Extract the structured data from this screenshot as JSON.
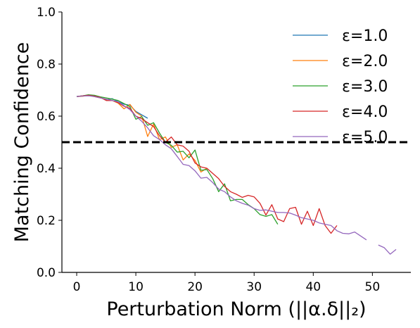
{
  "chart_data": {
    "type": "line",
    "title": "",
    "xlabel": "Perturbation Norm (||α.δ||₂)",
    "ylabel": "Matching Confidence",
    "xlim": [
      -2.5,
      56.5
    ],
    "ylim": [
      0.0,
      1.0
    ],
    "xticks": [
      0,
      10,
      20,
      30,
      40,
      50
    ],
    "yticks": [
      0.0,
      0.2,
      0.4,
      0.6,
      0.8,
      1.0
    ],
    "xtick_labels": [
      "0",
      "10",
      "20",
      "30",
      "40",
      "50"
    ],
    "ytick_labels": [
      "0.0",
      "0.2",
      "0.4",
      "0.6",
      "0.8",
      "1.0"
    ],
    "grid": false,
    "legend_position": "upper right",
    "threshold": {
      "y": 0.5,
      "style": "dashed",
      "color": "#000000"
    },
    "series": [
      {
        "name": "ε=1.0",
        "color": "#1f77b4",
        "x": [
          0,
          1,
          2,
          3,
          4,
          5,
          6,
          7,
          8,
          9,
          10,
          11,
          12
        ],
        "y": [
          0.675,
          0.678,
          0.68,
          0.678,
          0.672,
          0.663,
          0.667,
          0.655,
          0.646,
          0.642,
          0.618,
          0.605,
          0.592
        ]
      },
      {
        "name": "ε=2.0",
        "color": "#ff7f0e",
        "x": [
          0,
          1,
          2,
          3,
          4,
          5,
          6,
          7,
          8,
          9,
          10,
          11,
          12,
          13,
          14,
          15,
          16,
          17,
          18,
          19,
          20,
          21,
          22
        ],
        "y": [
          0.675,
          0.676,
          0.68,
          0.675,
          0.67,
          0.665,
          0.66,
          0.65,
          0.628,
          0.645,
          0.615,
          0.6,
          0.522,
          0.57,
          0.51,
          0.52,
          0.48,
          0.49,
          0.432,
          0.455,
          0.43,
          0.385,
          0.4
        ]
      },
      {
        "name": "ε=3.0",
        "color": "#2ca02c",
        "x": [
          0,
          1,
          2,
          3,
          4,
          5,
          6,
          7,
          8,
          9,
          10,
          11,
          12,
          13,
          14,
          15,
          16,
          17,
          18,
          19,
          20,
          21,
          22,
          23,
          24,
          25,
          26,
          27,
          28,
          29,
          30,
          31,
          32,
          33,
          34
        ],
        "y": [
          0.675,
          0.678,
          0.682,
          0.68,
          0.674,
          0.67,
          0.665,
          0.66,
          0.648,
          0.636,
          0.588,
          0.598,
          0.565,
          0.575,
          0.535,
          0.5,
          0.488,
          0.462,
          0.465,
          0.44,
          0.47,
          0.392,
          0.395,
          0.36,
          0.31,
          0.34,
          0.275,
          0.28,
          0.28,
          0.26,
          0.245,
          0.222,
          0.215,
          0.222,
          0.185
        ]
      },
      {
        "name": "ε=4.0",
        "color": "#d62728",
        "x": [
          0,
          1,
          2,
          3,
          4,
          5,
          6,
          7,
          8,
          9,
          10,
          11,
          12,
          13,
          14,
          15,
          16,
          17,
          18,
          19,
          20,
          21,
          22,
          23,
          24,
          25,
          26,
          27,
          28,
          29,
          30,
          31,
          32,
          33,
          34,
          35,
          36,
          37,
          38,
          39,
          40,
          41,
          42,
          43,
          44
        ],
        "y": [
          0.675,
          0.678,
          0.68,
          0.677,
          0.672,
          0.66,
          0.66,
          0.652,
          0.638,
          0.63,
          0.6,
          0.59,
          0.575,
          0.56,
          0.525,
          0.5,
          0.52,
          0.49,
          0.485,
          0.465,
          0.42,
          0.405,
          0.4,
          0.38,
          0.36,
          0.33,
          0.31,
          0.3,
          0.288,
          0.296,
          0.29,
          0.265,
          0.22,
          0.26,
          0.205,
          0.195,
          0.245,
          0.25,
          0.185,
          0.235,
          0.18,
          0.245,
          0.18,
          0.15,
          0.18
        ]
      },
      {
        "name": "ε=5.0",
        "color": "#9467bd",
        "x": [
          0,
          1,
          2,
          3,
          4,
          5,
          6,
          7,
          8,
          9,
          10,
          11,
          12,
          13,
          14,
          15,
          16,
          17,
          18,
          19,
          20,
          21,
          22,
          23,
          24,
          25,
          26,
          27,
          28,
          29,
          30,
          31,
          32,
          33,
          34,
          35,
          36,
          37,
          38,
          39,
          40,
          41,
          42,
          43,
          44,
          45,
          46,
          47,
          48,
          49,
          null,
          51,
          52,
          53,
          54
        ],
        "y": [
          0.675,
          0.677,
          0.678,
          0.675,
          0.67,
          0.665,
          0.66,
          0.655,
          0.64,
          0.625,
          0.6,
          0.58,
          0.555,
          0.525,
          0.51,
          0.49,
          0.475,
          0.445,
          0.415,
          0.41,
          0.39,
          0.362,
          0.365,
          0.345,
          0.32,
          0.31,
          0.29,
          0.275,
          0.265,
          0.258,
          0.245,
          0.238,
          0.24,
          0.235,
          0.23,
          0.23,
          0.228,
          0.22,
          0.21,
          0.205,
          0.2,
          0.19,
          0.185,
          0.18,
          0.16,
          0.15,
          0.148,
          0.155,
          0.14,
          0.125,
          null,
          0.105,
          0.095,
          0.07,
          0.088
        ]
      }
    ]
  }
}
